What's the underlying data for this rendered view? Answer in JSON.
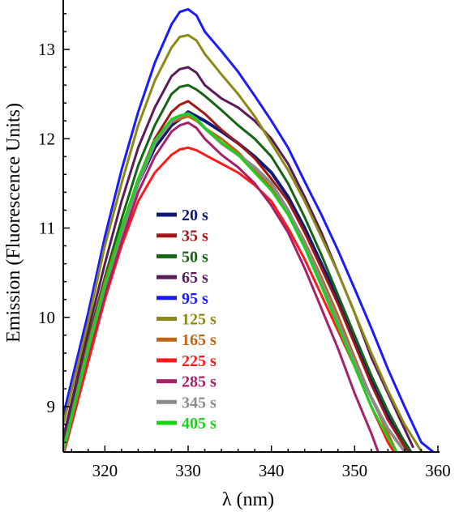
{
  "chart_data": {
    "type": "line",
    "title": "",
    "xlabel": "λ (nm)",
    "ylabel": "Emission (Fluorescence Units)",
    "xlim": [
      315,
      360
    ],
    "ylim": [
      8.5,
      13.5
    ],
    "xticks": [
      320,
      330,
      340,
      350,
      360
    ],
    "yticks": [
      9,
      10,
      11,
      12,
      13
    ],
    "grid": false,
    "legend_position": "center",
    "series": [
      {
        "name": "20 s",
        "color": "#0d1a78",
        "lw": 4,
        "x": [
          315,
          318,
          320,
          322,
          324,
          326,
          328,
          329,
          330,
          331,
          332,
          334,
          336,
          338,
          340,
          342,
          344,
          346,
          348,
          350,
          352,
          354,
          356,
          357
        ],
        "y": [
          8.5,
          9.6,
          10.3,
          10.95,
          11.5,
          11.9,
          12.15,
          12.22,
          12.3,
          12.25,
          12.2,
          12.08,
          11.95,
          11.8,
          11.62,
          11.35,
          11.0,
          10.6,
          10.2,
          9.75,
          9.3,
          8.9,
          8.6,
          8.45
        ]
      },
      {
        "name": "35 s",
        "color": "#a01818",
        "lw": 3,
        "x": [
          315,
          318,
          320,
          322,
          324,
          326,
          328,
          329,
          330,
          331,
          332,
          334,
          336,
          338,
          340,
          342,
          344,
          346,
          348,
          350,
          352,
          354,
          356,
          357
        ],
        "y": [
          8.5,
          9.65,
          10.35,
          11.0,
          11.55,
          12.0,
          12.3,
          12.38,
          12.42,
          12.35,
          12.28,
          12.1,
          11.95,
          11.78,
          11.55,
          11.3,
          10.95,
          10.55,
          10.15,
          9.7,
          9.25,
          8.85,
          8.55,
          8.4
        ]
      },
      {
        "name": "50 s",
        "color": "#146414",
        "lw": 3,
        "x": [
          315,
          318,
          320,
          322,
          324,
          326,
          328,
          329,
          330,
          331,
          332,
          334,
          336,
          338,
          340,
          342,
          344,
          346,
          348,
          350,
          352,
          354,
          356,
          357
        ],
        "y": [
          8.6,
          9.75,
          10.45,
          11.1,
          11.7,
          12.15,
          12.5,
          12.58,
          12.6,
          12.55,
          12.48,
          12.32,
          12.15,
          12.0,
          11.8,
          11.5,
          11.12,
          10.7,
          10.25,
          9.8,
          9.35,
          8.95,
          8.6,
          8.45
        ]
      },
      {
        "name": "65 s",
        "color": "#5c1a5c",
        "lw": 3,
        "x": [
          315,
          318,
          320,
          322,
          324,
          326,
          328,
          329,
          330,
          331,
          332,
          334,
          336,
          338,
          340,
          342,
          344,
          346,
          348,
          350,
          352,
          354,
          356,
          357
        ],
        "y": [
          8.65,
          9.85,
          10.6,
          11.3,
          11.9,
          12.35,
          12.7,
          12.78,
          12.8,
          12.74,
          12.6,
          12.45,
          12.35,
          12.2,
          12.0,
          11.72,
          11.35,
          10.95,
          10.5,
          10.05,
          9.55,
          9.15,
          8.75,
          8.55
        ]
      },
      {
        "name": "95 s",
        "color": "#1a1aff",
        "lw": 3,
        "x": [
          315,
          318,
          320,
          322,
          324,
          326,
          328,
          329,
          330,
          331,
          332,
          334,
          336,
          338,
          340,
          342,
          344,
          346,
          348,
          350,
          352,
          354,
          356,
          358,
          360
        ],
        "y": [
          8.9,
          10.05,
          10.9,
          11.65,
          12.3,
          12.85,
          13.28,
          13.42,
          13.45,
          13.38,
          13.2,
          12.98,
          12.75,
          12.48,
          12.2,
          11.9,
          11.52,
          11.15,
          10.75,
          10.32,
          9.88,
          9.42,
          9.0,
          8.6,
          8.45
        ]
      },
      {
        "name": "125 s",
        "color": "#8a8a14",
        "lw": 3,
        "x": [
          315,
          318,
          320,
          322,
          324,
          326,
          328,
          329,
          330,
          331,
          332,
          334,
          336,
          338,
          340,
          342,
          344,
          346,
          348,
          350,
          352,
          354,
          356,
          358,
          359
        ],
        "y": [
          8.8,
          9.95,
          10.8,
          11.5,
          12.15,
          12.65,
          13.02,
          13.14,
          13.16,
          13.1,
          12.95,
          12.72,
          12.5,
          12.25,
          11.95,
          11.65,
          11.3,
          10.9,
          10.5,
          10.05,
          9.6,
          9.18,
          8.8,
          8.5,
          8.4
        ]
      },
      {
        "name": "165 s",
        "color": "#c06418",
        "lw": 3,
        "x": [
          315,
          318,
          320,
          322,
          324,
          326,
          328,
          329,
          330,
          331,
          332,
          334,
          336,
          338,
          340,
          342,
          344,
          346,
          348,
          350,
          352,
          354,
          355
        ],
        "y": [
          8.5,
          9.7,
          10.4,
          11.0,
          11.55,
          11.95,
          12.18,
          12.22,
          12.25,
          12.2,
          12.12,
          12.0,
          11.85,
          11.65,
          11.45,
          11.2,
          10.85,
          10.45,
          10.02,
          9.55,
          9.1,
          8.7,
          8.5
        ]
      },
      {
        "name": "225 s",
        "color": "#ff1a1a",
        "lw": 3,
        "x": [
          315,
          318,
          320,
          322,
          324,
          326,
          328,
          329,
          330,
          331,
          332,
          334,
          336,
          338,
          340,
          342,
          344,
          346,
          348,
          350,
          352,
          354,
          355
        ],
        "y": [
          8.45,
          9.5,
          10.2,
          10.8,
          11.3,
          11.62,
          11.82,
          11.88,
          11.9,
          11.87,
          11.82,
          11.72,
          11.62,
          11.48,
          11.3,
          11.0,
          10.65,
          10.25,
          9.85,
          9.45,
          9.0,
          8.6,
          8.45
        ]
      },
      {
        "name": "285 s",
        "color": "#a8206a",
        "lw": 3,
        "x": [
          315,
          318,
          320,
          322,
          324,
          326,
          328,
          329,
          330,
          331,
          332,
          334,
          336,
          338,
          340,
          342,
          344,
          346,
          348,
          350,
          352,
          353
        ],
        "y": [
          8.5,
          9.6,
          10.25,
          10.85,
          11.4,
          11.8,
          12.08,
          12.15,
          12.18,
          12.12,
          12.0,
          11.82,
          11.68,
          11.5,
          11.25,
          10.95,
          10.55,
          10.1,
          9.65,
          9.15,
          8.7,
          8.45
        ]
      },
      {
        "name": "345 s",
        "color": "#8c8c8c",
        "lw": 4,
        "x": [
          315,
          318,
          320,
          322,
          324,
          326,
          328,
          329,
          330,
          331,
          332,
          334,
          336,
          338,
          340,
          342,
          344,
          346,
          348,
          350,
          352,
          354,
          356
        ],
        "y": [
          8.5,
          9.65,
          10.35,
          10.95,
          11.5,
          11.95,
          12.2,
          12.25,
          12.28,
          12.22,
          12.12,
          11.95,
          11.82,
          11.68,
          11.5,
          11.2,
          10.82,
          10.4,
          9.95,
          9.5,
          9.1,
          8.75,
          8.5
        ]
      },
      {
        "name": "405 s",
        "color": "#1ad21a",
        "lw": 3,
        "x": [
          315,
          318,
          320,
          322,
          324,
          326,
          328,
          329,
          330,
          331,
          332,
          334,
          336,
          338,
          340,
          342,
          344,
          346,
          348,
          350,
          352,
          354,
          355
        ],
        "y": [
          8.5,
          9.65,
          10.35,
          11.0,
          11.55,
          11.98,
          12.22,
          12.26,
          12.28,
          12.22,
          12.12,
          11.96,
          11.82,
          11.62,
          11.42,
          11.15,
          10.78,
          10.35,
          9.9,
          9.45,
          9.0,
          8.65,
          8.5
        ]
      }
    ]
  }
}
